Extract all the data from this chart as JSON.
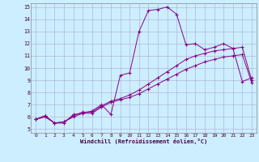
{
  "bg_color": "#cceeff",
  "grid_color": "#aaaacc",
  "line_color": "#880088",
  "xlim": [
    -0.5,
    23.5
  ],
  "ylim": [
    4.7,
    15.3
  ],
  "xticks": [
    0,
    1,
    2,
    3,
    4,
    5,
    6,
    7,
    8,
    9,
    10,
    11,
    12,
    13,
    14,
    15,
    16,
    17,
    18,
    19,
    20,
    21,
    22,
    23
  ],
  "yticks": [
    5,
    6,
    7,
    8,
    9,
    10,
    11,
    12,
    13,
    14,
    15
  ],
  "xlabel": "Windchill (Refroidissement éolien,°C)",
  "line1_x": [
    0,
    1,
    2,
    3,
    4,
    5,
    6,
    7,
    8,
    9,
    10,
    11,
    12,
    13,
    14,
    15,
    16,
    17,
    18,
    19,
    20,
    21,
    22,
    23
  ],
  "line1_y": [
    5.8,
    6.1,
    5.5,
    5.5,
    6.2,
    6.3,
    6.5,
    7.0,
    6.2,
    9.4,
    9.6,
    13.0,
    14.7,
    14.8,
    15.0,
    14.4,
    11.9,
    12.0,
    11.5,
    11.7,
    12.0,
    11.6,
    8.9,
    9.2
  ],
  "line2_x": [
    0,
    1,
    2,
    3,
    4,
    5,
    6,
    7,
    8,
    9,
    10,
    11,
    12,
    13,
    14,
    15,
    16,
    17,
    18,
    19,
    20,
    21,
    22,
    23
  ],
  "line2_y": [
    5.8,
    6.1,
    5.5,
    5.6,
    6.1,
    6.4,
    6.4,
    6.9,
    7.3,
    7.5,
    7.8,
    8.2,
    8.7,
    9.2,
    9.7,
    10.2,
    10.7,
    11.0,
    11.2,
    11.4,
    11.5,
    11.6,
    11.7,
    9.0
  ],
  "line3_x": [
    0,
    1,
    2,
    3,
    4,
    5,
    6,
    7,
    8,
    9,
    10,
    11,
    12,
    13,
    14,
    15,
    16,
    17,
    18,
    19,
    20,
    21,
    22,
    23
  ],
  "line3_y": [
    5.8,
    6.0,
    5.5,
    5.6,
    6.0,
    6.3,
    6.3,
    6.8,
    7.2,
    7.4,
    7.6,
    7.9,
    8.3,
    8.7,
    9.1,
    9.5,
    9.9,
    10.2,
    10.5,
    10.7,
    10.9,
    11.0,
    11.1,
    8.8
  ]
}
